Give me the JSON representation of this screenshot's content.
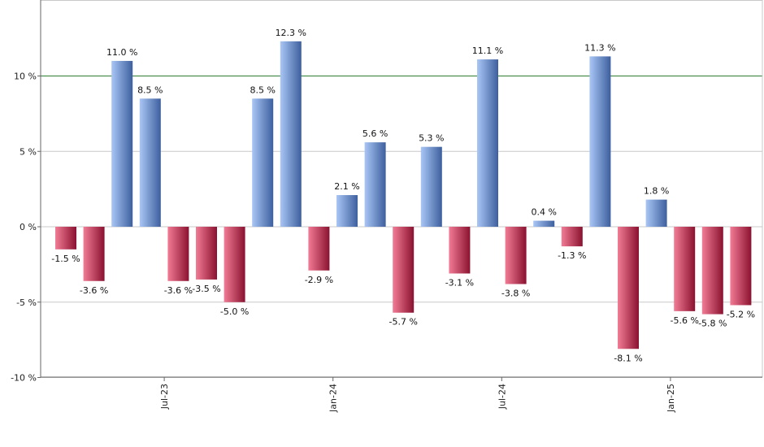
{
  "chart_data": {
    "type": "bar",
    "title": "",
    "xlabel": "",
    "ylabel": "",
    "ylim": [
      -10,
      15
    ],
    "grid": true,
    "value_suffix": " %",
    "y_ticks": [
      {
        "value": -10,
        "label": "-10 %"
      },
      {
        "value": -5,
        "label": "-5 %"
      },
      {
        "value": 0,
        "label": "0 %"
      },
      {
        "value": 5,
        "label": "5 %"
      },
      {
        "value": 10,
        "label": "10 %"
      }
    ],
    "reference_line": {
      "value": 10,
      "color": "#2e7d32"
    },
    "x_ticks": [
      {
        "index": 3.5,
        "label": "Jul-23"
      },
      {
        "index": 9.5,
        "label": "Jan-24"
      },
      {
        "index": 15.5,
        "label": "Jul-24"
      },
      {
        "index": 21.5,
        "label": "Jan-25"
      }
    ],
    "values": [
      -1.5,
      -3.6,
      11.0,
      8.5,
      -3.6,
      -3.5,
      -5.0,
      8.5,
      12.3,
      -2.9,
      2.1,
      5.6,
      -5.7,
      5.3,
      -3.1,
      11.1,
      -3.8,
      0.4,
      -1.3,
      11.3,
      -8.1,
      1.8,
      -5.6,
      -5.8,
      -5.2
    ],
    "labels": [
      "-1.5 %",
      "-3.6 %",
      "11.0 %",
      "8.5 %",
      "-3.6 %",
      "-3.5 %",
      "-5.0 %",
      "8.5 %",
      "12.3 %",
      "-2.9 %",
      "2.1 %",
      "5.6 %",
      "-5.7 %",
      "5.3 %",
      "-3.1 %",
      "11.1 %",
      "-3.8 %",
      "0.4 %",
      "-1.3 %",
      "11.3 %",
      "-8.1 %",
      "1.8 %",
      "-5.6 %",
      "-5.8 %",
      "-5.2 %"
    ],
    "colors": {
      "positive_light": "#a9c6f5",
      "positive_dark": "#3d5f9e",
      "negative_light": "#f27b95",
      "negative_dark": "#8a1230",
      "grid": "#c8c8c8",
      "axis": "#666666"
    }
  }
}
